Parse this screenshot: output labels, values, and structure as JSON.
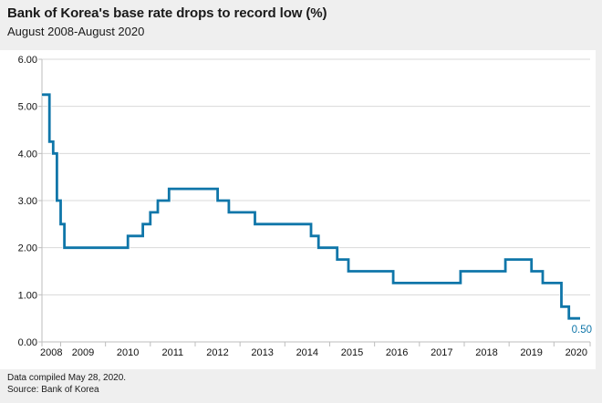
{
  "header": {
    "title": "Bank of Korea's base rate drops to record low (%)",
    "subtitle": "August 2008-August 2020"
  },
  "footer": {
    "compiled": "Data compiled May 28, 2020.",
    "source": "Source: Bank of Korea"
  },
  "colors": {
    "accent": "#0f76a9",
    "page_bg": "#efefef",
    "plot_bg": "#ffffff",
    "gridline": "#d9d9d9",
    "axis": "#bdbdbd",
    "text": "#1a1a1a"
  },
  "chart_data": {
    "type": "line",
    "style": "step",
    "series_name": "Bank of Korea base rate (%)",
    "title": "Bank of Korea's base rate drops to record low (%)",
    "subtitle": "August 2008-August 2020",
    "x_start": "2008-08",
    "x_end": "2020-08",
    "ylim": [
      0,
      6
    ],
    "y_ticks": [
      "0.00",
      "1.00",
      "2.00",
      "3.00",
      "4.00",
      "5.00",
      "6.00"
    ],
    "x_year_labels": [
      "2008",
      "2009",
      "2010",
      "2011",
      "2012",
      "2013",
      "2014",
      "2015",
      "2016",
      "2017",
      "2018",
      "2019",
      "2020"
    ],
    "grid": "horizontal",
    "legend": "none",
    "end_value_label": "0.50",
    "points": [
      {
        "date": "2008-08",
        "value": 5.25
      },
      {
        "date": "2008-10",
        "value": 4.25
      },
      {
        "date": "2008-11",
        "value": 4.0
      },
      {
        "date": "2008-12",
        "value": 3.0
      },
      {
        "date": "2009-01",
        "value": 2.5
      },
      {
        "date": "2009-02",
        "value": 2.0
      },
      {
        "date": "2010-07",
        "value": 2.25
      },
      {
        "date": "2010-11",
        "value": 2.5
      },
      {
        "date": "2011-01",
        "value": 2.75
      },
      {
        "date": "2011-03",
        "value": 3.0
      },
      {
        "date": "2011-06",
        "value": 3.25
      },
      {
        "date": "2012-07",
        "value": 3.0
      },
      {
        "date": "2012-10",
        "value": 2.75
      },
      {
        "date": "2013-05",
        "value": 2.5
      },
      {
        "date": "2014-08",
        "value": 2.25
      },
      {
        "date": "2014-10",
        "value": 2.0
      },
      {
        "date": "2015-03",
        "value": 1.75
      },
      {
        "date": "2015-06",
        "value": 1.5
      },
      {
        "date": "2016-06",
        "value": 1.25
      },
      {
        "date": "2017-12",
        "value": 1.5
      },
      {
        "date": "2018-12",
        "value": 1.75
      },
      {
        "date": "2019-07",
        "value": 1.5
      },
      {
        "date": "2019-10",
        "value": 1.25
      },
      {
        "date": "2020-03",
        "value": 0.75
      },
      {
        "date": "2020-05",
        "value": 0.5
      }
    ]
  }
}
